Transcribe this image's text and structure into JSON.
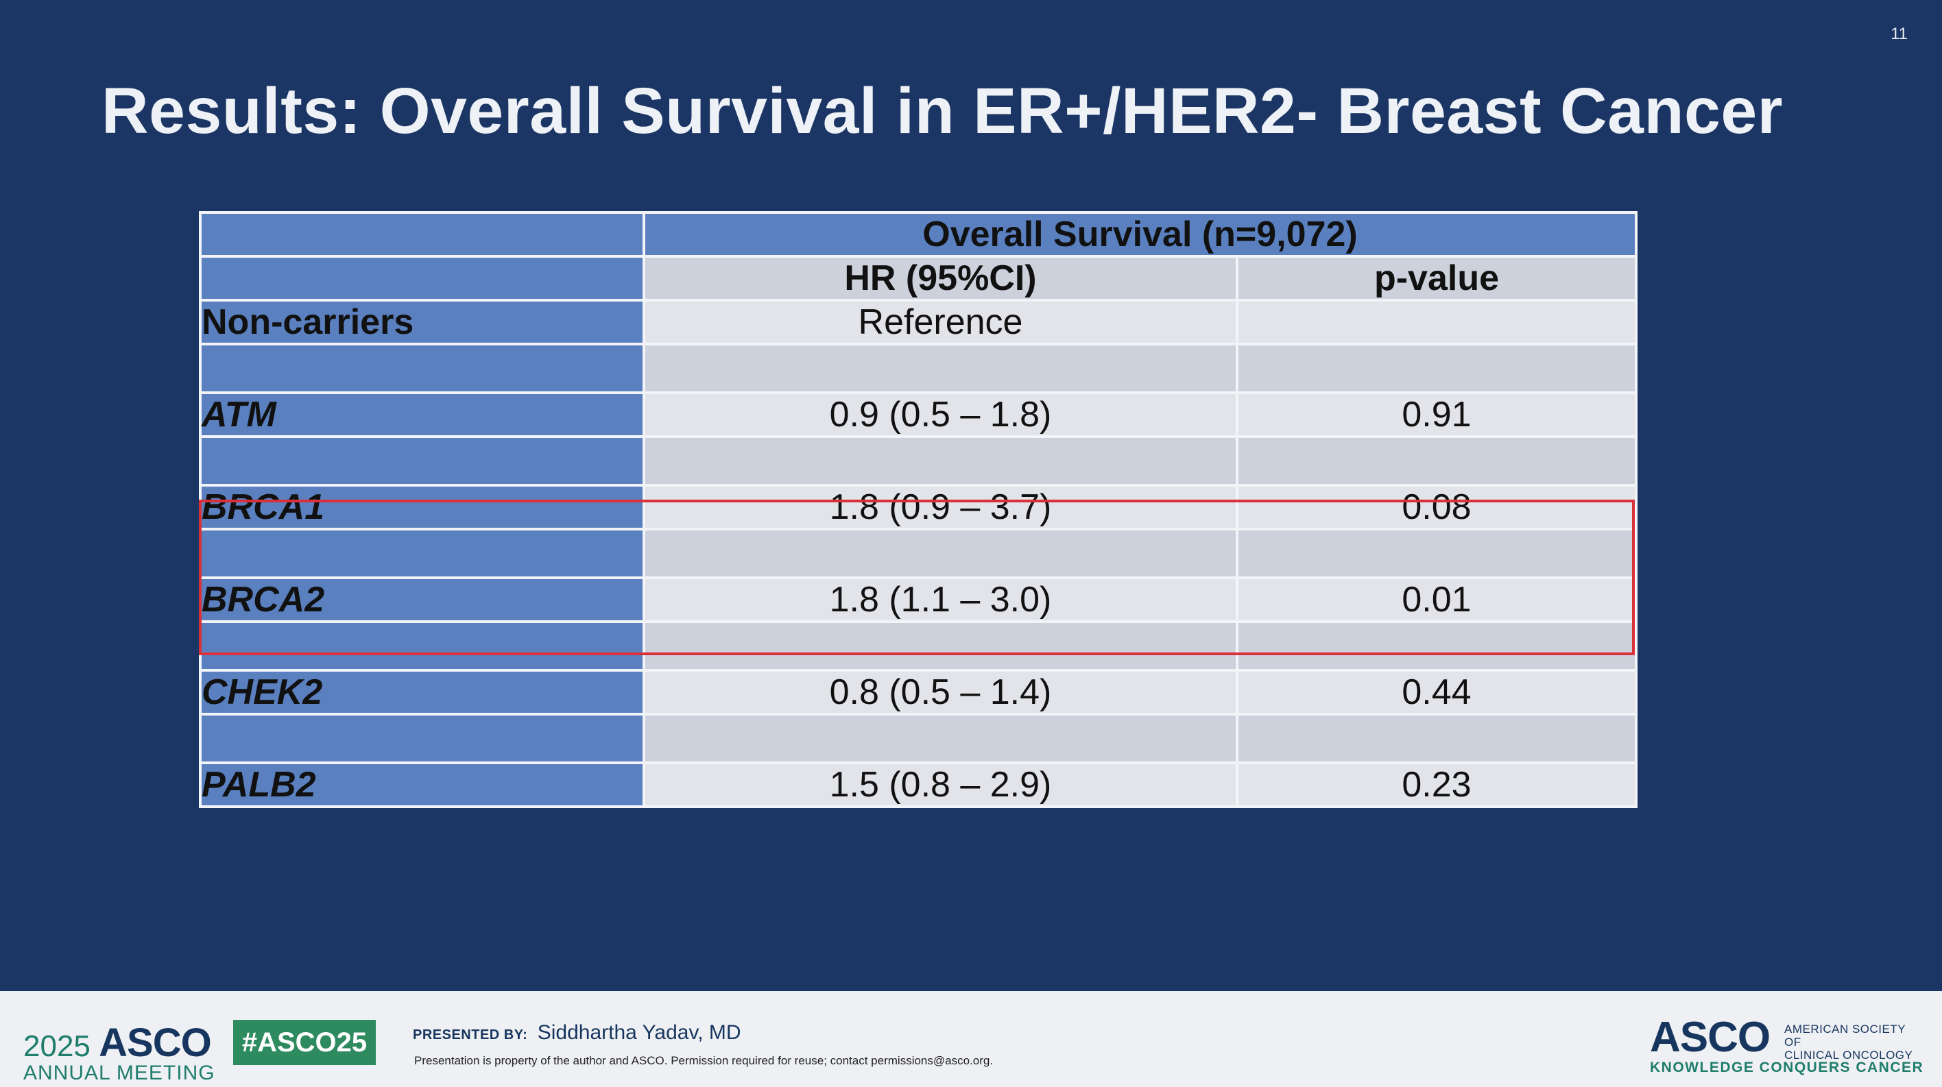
{
  "slide_number": "11",
  "title": "Results: Overall Survival in ER+/HER2- Breast Cancer",
  "table": {
    "group_header": "Overall Survival (n=9,072)",
    "col_headers": [
      "HR (95%CI)",
      "p-value"
    ],
    "rows": [
      {
        "label": "Non-carriers",
        "hr": "Reference",
        "p": ""
      },
      {
        "label": "ATM",
        "hr": "0.9 (0.5 – 1.8)",
        "p": "0.91"
      },
      {
        "label": "BRCA1",
        "hr": "1.8 (0.9 – 3.7)",
        "p": "0.08"
      },
      {
        "label": "BRCA2",
        "hr": "1.8 (1.1 – 3.0)",
        "p": "0.01"
      },
      {
        "label": "CHEK2",
        "hr": "0.8 (0.5 – 1.4)",
        "p": "0.44"
      },
      {
        "label": "PALB2",
        "hr": "1.5 (0.8 – 2.9)",
        "p": "0.23"
      }
    ],
    "highlight_color": "#d9303a"
  },
  "footer": {
    "meeting_year": "2025",
    "meeting_brand": "ASCO",
    "meeting_sub": "ANNUAL MEETING",
    "hashtag": "#ASCO25",
    "presented_by_label": "PRESENTED BY:",
    "presenter": "Siddhartha Yadav, MD",
    "disclaimer": "Presentation is property of the author and ASCO. Permission required for reuse; contact permissions@asco.org.",
    "org_brand": "ASCO",
    "org_name_line1": "AMERICAN SOCIETY OF",
    "org_name_line2": "CLINICAL ONCOLOGY",
    "org_tagline": "KNOWLEDGE CONQUERS CANCER"
  },
  "colors": {
    "background": "#1b3664",
    "label_fill": "#5a80bf",
    "hashtag_fill": "#2e8a5f"
  }
}
